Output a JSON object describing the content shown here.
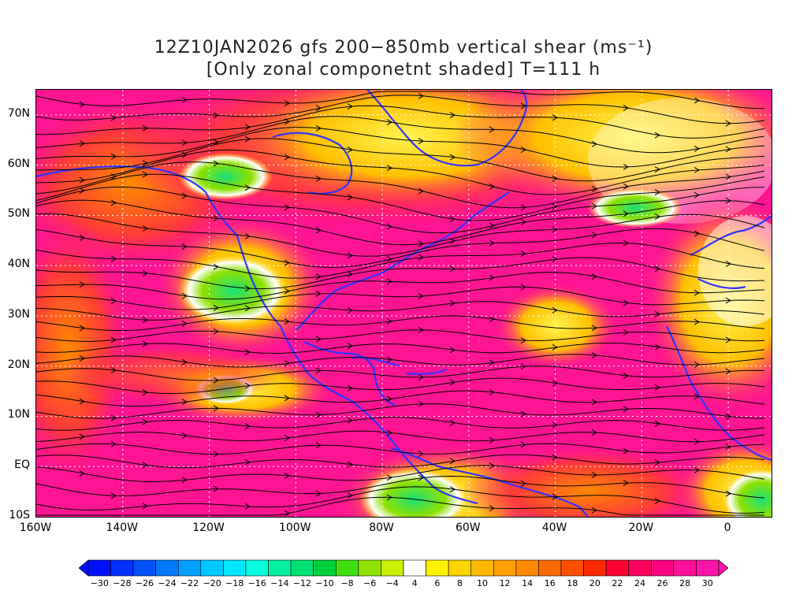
{
  "title": {
    "line1": "12Z10JAN2026 gfs 200−850mb vertical shear (ms⁻¹)",
    "line2": "[Only zonal componetnt shaded] T=111 h"
  },
  "map": {
    "lon_range": [
      -160,
      10
    ],
    "lat_range": [
      -10,
      75
    ],
    "lat_ticks": [
      {
        "value": 70,
        "label": "70N"
      },
      {
        "value": 60,
        "label": "60N"
      },
      {
        "value": 50,
        "label": "50N"
      },
      {
        "value": 40,
        "label": "40N"
      },
      {
        "value": 30,
        "label": "30N"
      },
      {
        "value": 20,
        "label": "20N"
      },
      {
        "value": 10,
        "label": "10N"
      },
      {
        "value": 0,
        "label": "EQ"
      },
      {
        "value": -10,
        "label": "10S"
      }
    ],
    "lon_ticks": [
      {
        "value": -160,
        "label": "160W"
      },
      {
        "value": -140,
        "label": "140W"
      },
      {
        "value": -120,
        "label": "120W"
      },
      {
        "value": -100,
        "label": "100W"
      },
      {
        "value": -80,
        "label": "80W"
      },
      {
        "value": -60,
        "label": "60W"
      },
      {
        "value": -40,
        "label": "40W"
      },
      {
        "value": -20,
        "label": "20W"
      },
      {
        "value": 0,
        "label": "0"
      }
    ],
    "colors": {
      "ocean_high": "#ff1493",
      "strong": "#ff3a5a",
      "moderate": "#ff8c00",
      "weak": "#ffd700",
      "calm": "#ffffff",
      "negative": "#66dd33",
      "coast": "#3333ff",
      "streamline": "#000000",
      "grid": "#ffffff"
    }
  },
  "colorbar": {
    "labels": [
      "−30",
      "−28",
      "−26",
      "−24",
      "−22",
      "−20",
      "−18",
      "−16",
      "−14",
      "−12",
      "−10",
      "−8",
      "−6",
      "−4",
      "4",
      "6",
      "8",
      "10",
      "12",
      "14",
      "16",
      "18",
      "20",
      "22",
      "24",
      "26",
      "28",
      "30"
    ],
    "colors": [
      "#0010ff",
      "#0030ff",
      "#0050ff",
      "#0078ff",
      "#00a0ff",
      "#00c8ff",
      "#00e6ff",
      "#00ffdc",
      "#00f0a0",
      "#00e070",
      "#00d040",
      "#40e010",
      "#90e000",
      "#c8f000",
      "#ffffff",
      "#fff000",
      "#ffd400",
      "#ffba00",
      "#ffa000",
      "#ff8800",
      "#ff6a00",
      "#ff4e00",
      "#ff2a00",
      "#ff0030",
      "#ff0060",
      "#ff0080",
      "#ff109a",
      "#ff14a8"
    ]
  }
}
